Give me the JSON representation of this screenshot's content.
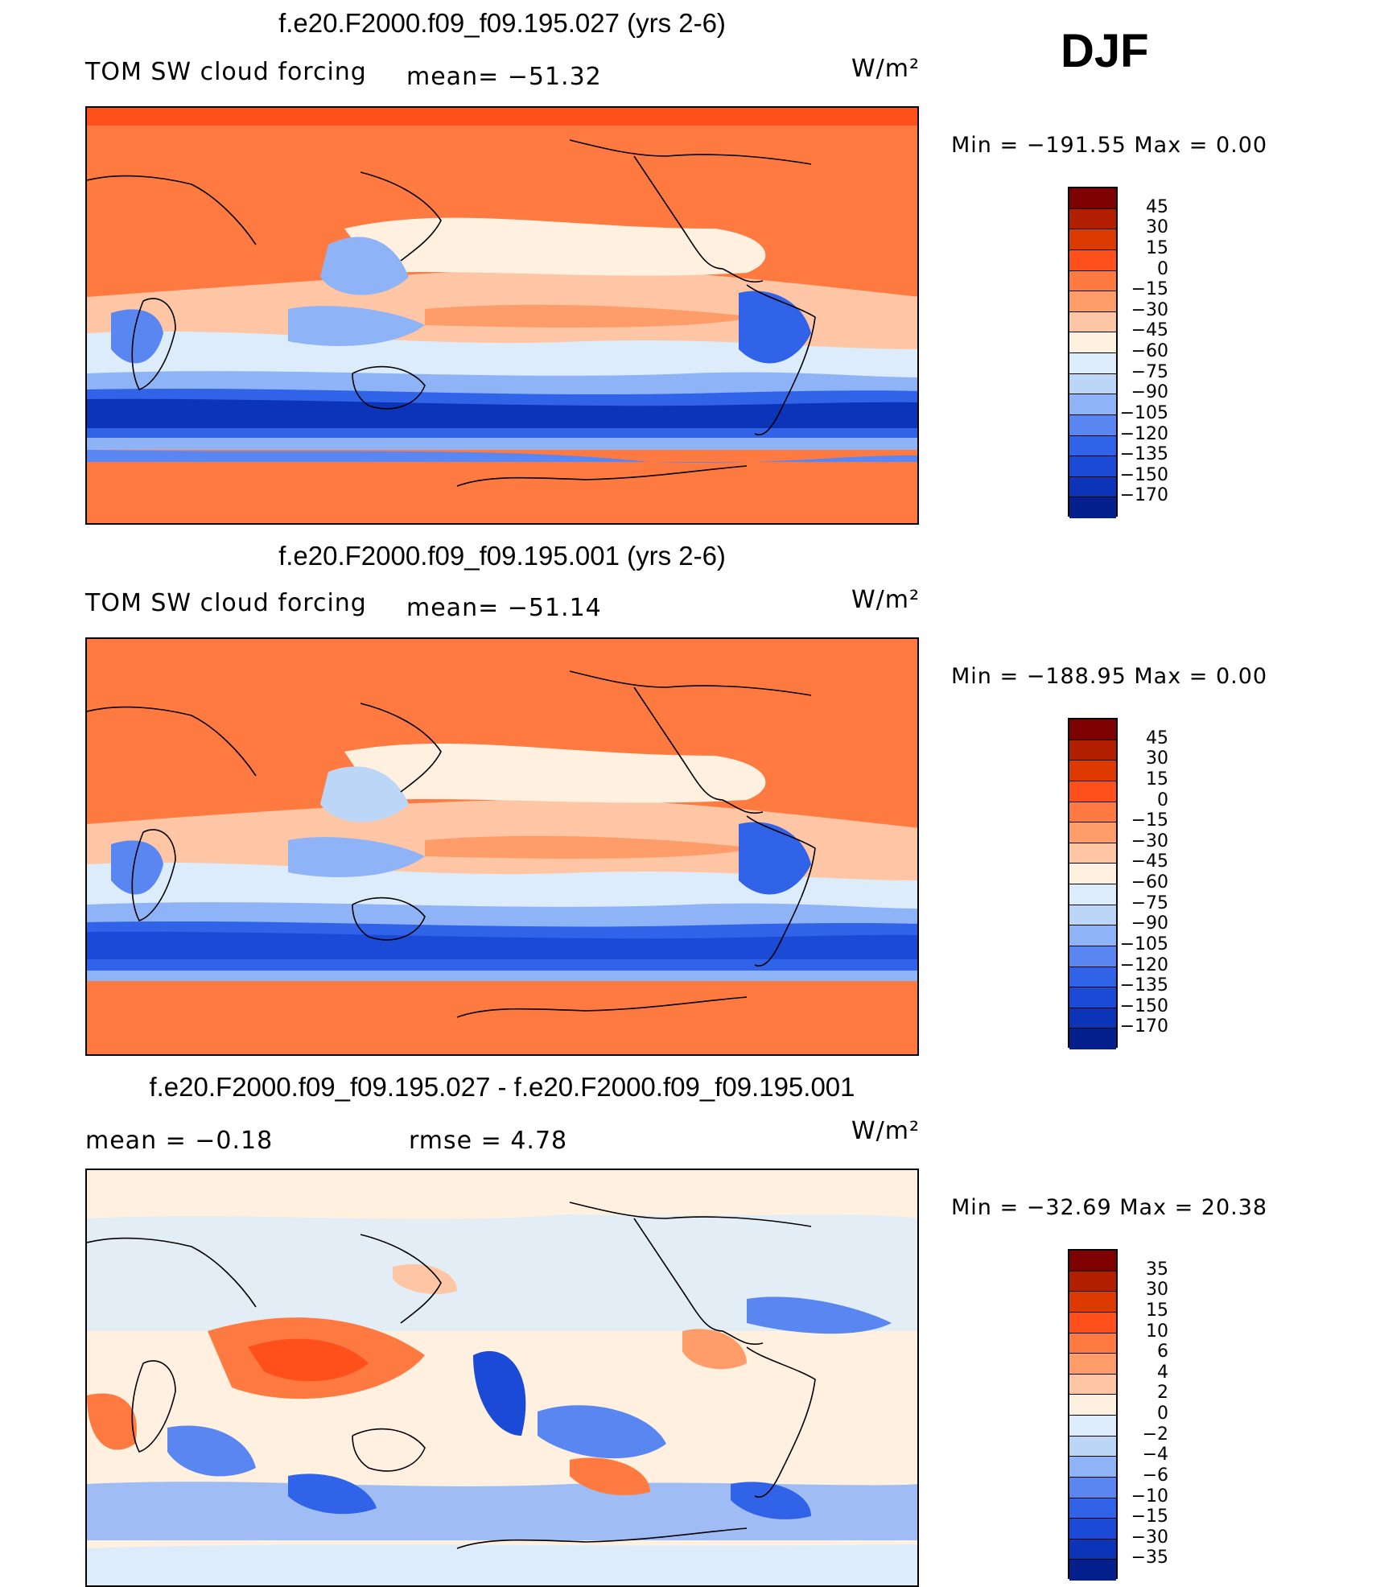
{
  "season": "DJF",
  "palette_main": [
    "#7f0000",
    "#b21e00",
    "#dc3a00",
    "#ff4f1a",
    "#ff7a40",
    "#ff9d6a",
    "#ffc6a6",
    "#fff0e0",
    "#dcecfa",
    "#bcd6f8",
    "#8fb3f7",
    "#5a86f2",
    "#3063e8",
    "#1a4ad6",
    "#0c34b8",
    "#051f8c"
  ],
  "palette_diff": [
    "#7f0000",
    "#b21e00",
    "#dc3a00",
    "#ff4f1a",
    "#ff7a40",
    "#ff9d6a",
    "#ffc6a6",
    "#fff0e0",
    "#dcecfa",
    "#bcd6f8",
    "#8fb3f7",
    "#5a86f2",
    "#3063e8",
    "#1a4ad6",
    "#0c34b8",
    "#051f8c"
  ],
  "panels": [
    {
      "title": "f.e20.F2000.f09_f09.195.027 (yrs 2-6)",
      "left_label": "TOM SW cloud forcing",
      "stat_label": "mean= −51.32",
      "units": "W/m²",
      "minmax": "Min = −191.55 Max =    0.00",
      "levels": [
        "45",
        "30",
        "15",
        "0",
        "−15",
        "−30",
        "−45",
        "−60",
        "−75",
        "−90",
        "−105",
        "−120",
        "−135",
        "−150",
        "−170"
      ]
    },
    {
      "title": "f.e20.F2000.f09_f09.195.001 (yrs 2-6)",
      "left_label": "TOM SW cloud forcing",
      "stat_label": "mean= −51.14",
      "units": "W/m²",
      "minmax": "Min = −188.95 Max =    0.00",
      "levels": [
        "45",
        "30",
        "15",
        "0",
        "−15",
        "−30",
        "−45",
        "−60",
        "−75",
        "−90",
        "−105",
        "−120",
        "−135",
        "−150",
        "−170"
      ]
    },
    {
      "title": "f.e20.F2000.f09_f09.195.027 - f.e20.F2000.f09_f09.195.001",
      "left_label": "mean =   −0.18",
      "stat_label": "rmse =    4.78",
      "units": "W/m²",
      "minmax": "Min = −32.69 Max =  20.38",
      "levels": [
        "35",
        "30",
        "15",
        "10",
        "6",
        "4",
        "2",
        "0",
        "−2",
        "−4",
        "−6",
        "−10",
        "−15",
        "−30",
        "−35"
      ]
    }
  ]
}
